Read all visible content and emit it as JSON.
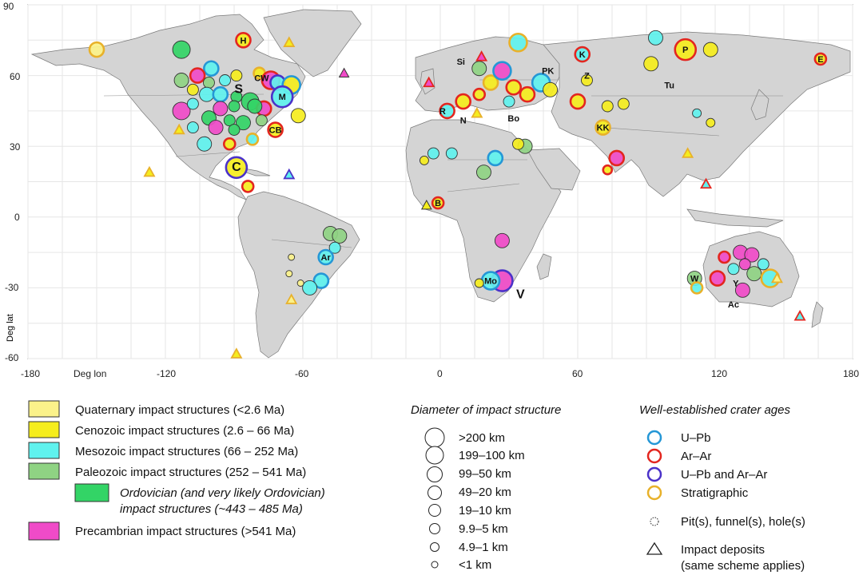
{
  "axes": {
    "y_ticks": [
      "90",
      "60",
      "30",
      "0",
      "-30",
      "-60"
    ],
    "x_ticks": [
      "-180",
      "-120",
      "-60",
      "0",
      "60",
      "120",
      "180"
    ],
    "x_label": "Deg lon",
    "y_label": "Deg lat"
  },
  "colors": {
    "quaternary": "#fbf28a",
    "cenozoic": "#f5ed1d",
    "mesozoic": "#5ff2ee",
    "paleozoic": "#8fd383",
    "ordovician": "#33d466",
    "precambrian": "#f04bc8",
    "upb": "#2597d6",
    "arar": "#e3261f",
    "both": "#4b32c9",
    "strat": "#e8b12a",
    "land": "#d4d4d4",
    "ocean": "#ffffff"
  },
  "legend_age": [
    {
      "label": "Quaternary impact structures (<2.6 Ma)",
      "color": "quaternary"
    },
    {
      "label": "Cenozoic impact structures (2.6 – 66 Ma)",
      "color": "cenozoic"
    },
    {
      "label": "Mesozoic impact structures (66 – 252 Ma)",
      "color": "mesozoic"
    },
    {
      "label": "Paleozoic impact structures (252 – 541 Ma)",
      "color": "paleozoic"
    },
    {
      "label": "Ordovician (and very likely Ordovician)",
      "label2": "impact structures (~443 – 485 Ma)",
      "color": "ordovician"
    },
    {
      "label": "Precambrian impact structures (>541 Ma)",
      "color": "precambrian"
    }
  ],
  "legend_diameter": {
    "title": "Diameter of impact structure",
    "items": [
      ">200 km",
      "199–100 km",
      "99–50 km",
      "49–20 km",
      "19–10 km",
      "9.9–5 km",
      "4.9–1 km",
      "<1 km"
    ]
  },
  "legend_ages": {
    "title": "Well-established crater ages",
    "items": [
      {
        "label": "U–Pb",
        "color": "upb"
      },
      {
        "label": "Ar–Ar",
        "color": "arar"
      },
      {
        "label": "U–Pb and Ar–Ar",
        "color": "both"
      },
      {
        "label": "Stratigraphic",
        "color": "strat"
      }
    ],
    "pit_label": "Pit(s), funnel(s), hole(s)",
    "deposit_label": "Impact deposits",
    "deposit_label2": "(same scheme applies)"
  },
  "site_labels": [
    {
      "text": "H",
      "lon": -86,
      "lat": 75
    },
    {
      "text": "CW",
      "lon": -78,
      "lat": 59
    },
    {
      "text": "S",
      "lon": -88,
      "lat": 54
    },
    {
      "text": "M",
      "lon": -69,
      "lat": 51
    },
    {
      "text": "CB",
      "lon": -72,
      "lat": 37
    },
    {
      "text": "C",
      "lon": -89,
      "lat": 21
    },
    {
      "text": "Ar",
      "lon": -50,
      "lat": -17
    },
    {
      "text": "R",
      "lon": 1,
      "lat": 45
    },
    {
      "text": "N",
      "lon": 10,
      "lat": 41
    },
    {
      "text": "Bo",
      "lon": 32,
      "lat": 42
    },
    {
      "text": "Si",
      "lon": 9,
      "lat": 66
    },
    {
      "text": "PK",
      "lon": 47,
      "lat": 62
    },
    {
      "text": "Z",
      "lon": 64,
      "lat": 60
    },
    {
      "text": "K",
      "lon": 62,
      "lat": 69
    },
    {
      "text": "P",
      "lon": 107,
      "lat": 71
    },
    {
      "text": "E",
      "lon": 166,
      "lat": 67
    },
    {
      "text": "Tu",
      "lon": 100,
      "lat": 56
    },
    {
      "text": "KK",
      "lon": 71,
      "lat": 38
    },
    {
      "text": "B",
      "lon": -1,
      "lat": 6
    },
    {
      "text": "Mo",
      "lon": 22,
      "lat": -27
    },
    {
      "text": "V",
      "lon": 35,
      "lat": -33
    },
    {
      "text": "W",
      "lon": 111,
      "lat": -26
    },
    {
      "text": "Y",
      "lon": 129,
      "lat": -28
    },
    {
      "text": "Ac",
      "lon": 128,
      "lat": -37
    }
  ],
  "craters": [
    {
      "lon": -150,
      "lat": 71,
      "d": 4,
      "f": "quaternary",
      "r": "strat"
    },
    {
      "lon": -113,
      "lat": 71,
      "d": 5,
      "f": "ordovician"
    },
    {
      "lon": -86,
      "lat": 75,
      "d": 4,
      "f": "cenozoic",
      "r": "arar"
    },
    {
      "lon": -100,
      "lat": 63,
      "d": 4,
      "f": "mesozoic",
      "r": "upb"
    },
    {
      "lon": -113,
      "lat": 58,
      "d": 4,
      "f": "paleozoic"
    },
    {
      "lon": -106,
      "lat": 60,
      "d": 4,
      "f": "precambrian",
      "r": "arar"
    },
    {
      "lon": -101,
      "lat": 57,
      "d": 3,
      "f": "paleozoic"
    },
    {
      "lon": -94,
      "lat": 58,
      "d": 3,
      "f": "mesozoic"
    },
    {
      "lon": -89,
      "lat": 60,
      "d": 3,
      "f": "cenozoic"
    },
    {
      "lon": -79,
      "lat": 61,
      "d": 3,
      "f": "cenozoic",
      "r": "strat"
    },
    {
      "lon": -74,
      "lat": 58,
      "d": 5,
      "f": "precambrian",
      "r": "arar"
    },
    {
      "lon": -71,
      "lat": 57,
      "d": 4,
      "f": "mesozoic",
      "r": "both"
    },
    {
      "lon": -65,
      "lat": 56,
      "d": 5,
      "f": "cenozoic",
      "r": "upb"
    },
    {
      "lon": -108,
      "lat": 54,
      "d": 3,
      "f": "cenozoic"
    },
    {
      "lon": -102,
      "lat": 52,
      "d": 4,
      "f": "mesozoic"
    },
    {
      "lon": -96,
      "lat": 52,
      "d": 4,
      "f": "mesozoic",
      "r": "upb"
    },
    {
      "lon": -89,
      "lat": 51,
      "d": 3,
      "f": "ordovician"
    },
    {
      "lon": -83,
      "lat": 49,
      "d": 5,
      "f": "ordovician"
    },
    {
      "lon": -69,
      "lat": 51,
      "d": 6,
      "f": "mesozoic",
      "r": "both"
    },
    {
      "lon": -77,
      "lat": 46,
      "d": 4,
      "f": "precambrian",
      "r": "arar"
    },
    {
      "lon": -81,
      "lat": 47,
      "d": 4,
      "f": "ordovician"
    },
    {
      "lon": -90,
      "lat": 47,
      "d": 3,
      "f": "ordovician"
    },
    {
      "lon": -96,
      "lat": 46,
      "d": 4,
      "f": "precambrian"
    },
    {
      "lon": -113,
      "lat": 45,
      "d": 5,
      "f": "precambrian"
    },
    {
      "lon": -108,
      "lat": 48,
      "d": 3,
      "f": "mesozoic"
    },
    {
      "lon": -101,
      "lat": 42,
      "d": 4,
      "f": "ordovician"
    },
    {
      "lon": -92,
      "lat": 41,
      "d": 3,
      "f": "ordovician"
    },
    {
      "lon": -86,
      "lat": 40,
      "d": 4,
      "f": "ordovician"
    },
    {
      "lon": -78,
      "lat": 41,
      "d": 3,
      "f": "paleozoic"
    },
    {
      "lon": -62,
      "lat": 43,
      "d": 4,
      "f": "cenozoic"
    },
    {
      "lon": -108,
      "lat": 38,
      "d": 3,
      "f": "mesozoic"
    },
    {
      "lon": -98,
      "lat": 38,
      "d": 4,
      "f": "precambrian"
    },
    {
      "lon": -90,
      "lat": 37,
      "d": 3,
      "f": "ordovician"
    },
    {
      "lon": -72,
      "lat": 37,
      "d": 4,
      "f": "cenozoic",
      "r": "arar"
    },
    {
      "lon": -103,
      "lat": 31,
      "d": 4,
      "f": "mesozoic"
    },
    {
      "lon": -92,
      "lat": 31,
      "d": 3,
      "f": "cenozoic",
      "r": "arar"
    },
    {
      "lon": -82,
      "lat": 33,
      "d": 3,
      "f": "mesozoic",
      "r": "strat"
    },
    {
      "lon": -89,
      "lat": 21,
      "d": 6,
      "f": "cenozoic",
      "r": "both"
    },
    {
      "lon": -84,
      "lat": 13,
      "d": 3,
      "f": "cenozoic",
      "r": "arar"
    },
    {
      "lon": -48,
      "lat": -7,
      "d": 4,
      "f": "paleozoic"
    },
    {
      "lon": -44,
      "lat": -8,
      "d": 4,
      "f": "paleozoic"
    },
    {
      "lon": -46,
      "lat": -13,
      "d": 3,
      "f": "mesozoic"
    },
    {
      "lon": -50,
      "lat": -17,
      "d": 4,
      "f": "mesozoic",
      "r": "upb"
    },
    {
      "lon": -52,
      "lat": -27,
      "d": 4,
      "f": "mesozoic",
      "r": "upb"
    },
    {
      "lon": -57,
      "lat": -30,
      "d": 4,
      "f": "mesozoic"
    },
    {
      "lon": -65,
      "lat": -17,
      "d": 1,
      "f": "quaternary"
    },
    {
      "lon": -66,
      "lat": -24,
      "d": 1,
      "f": "quaternary"
    },
    {
      "lon": -61,
      "lat": -28,
      "d": 1,
      "f": "quaternary"
    },
    {
      "lon": 3,
      "lat": 45,
      "d": 4,
      "f": "mesozoic",
      "r": "arar"
    },
    {
      "lon": 10,
      "lat": 49,
      "d": 4,
      "f": "cenozoic",
      "r": "arar"
    },
    {
      "lon": 17,
      "lat": 52,
      "d": 3,
      "f": "cenozoic",
      "r": "arar"
    },
    {
      "lon": 22,
      "lat": 57,
      "d": 4,
      "f": "cenozoic",
      "r": "strat"
    },
    {
      "lon": 27,
      "lat": 62,
      "d": 5,
      "f": "precambrian",
      "r": "upb"
    },
    {
      "lon": 17,
      "lat": 63,
      "d": 4,
      "f": "paleozoic"
    },
    {
      "lon": 34,
      "lat": 74,
      "d": 5,
      "f": "mesozoic",
      "r": "strat"
    },
    {
      "lon": 32,
      "lat": 55,
      "d": 4,
      "f": "cenozoic",
      "r": "arar"
    },
    {
      "lon": 38,
      "lat": 52,
      "d": 4,
      "f": "cenozoic",
      "r": "arar"
    },
    {
      "lon": 30,
      "lat": 49,
      "d": 3,
      "f": "mesozoic"
    },
    {
      "lon": 44,
      "lat": 57,
      "d": 5,
      "f": "mesozoic",
      "r": "upb"
    },
    {
      "lon": 48,
      "lat": 54,
      "d": 4,
      "f": "cenozoic"
    },
    {
      "lon": 62,
      "lat": 69,
      "d": 4,
      "f": "mesozoic",
      "r": "arar"
    },
    {
      "lon": 64,
      "lat": 58,
      "d": 3,
      "f": "cenozoic"
    },
    {
      "lon": 60,
      "lat": 49,
      "d": 4,
      "f": "cenozoic",
      "r": "arar"
    },
    {
      "lon": 94,
      "lat": 76,
      "d": 4,
      "f": "mesozoic"
    },
    {
      "lon": 92,
      "lat": 65,
      "d": 4,
      "f": "cenozoic"
    },
    {
      "lon": 107,
      "lat": 71,
      "d": 6,
      "f": "cenozoic",
      "r": "arar"
    },
    {
      "lon": 118,
      "lat": 71,
      "d": 4,
      "f": "cenozoic"
    },
    {
      "lon": 166,
      "lat": 67,
      "d": 3,
      "f": "cenozoic",
      "r": "arar"
    },
    {
      "lon": 71,
      "lat": 38,
      "d": 4,
      "f": "cenozoic",
      "r": "strat"
    },
    {
      "lon": 80,
      "lat": 48,
      "d": 3,
      "f": "cenozoic"
    },
    {
      "lon": 73,
      "lat": 47,
      "d": 3,
      "f": "cenozoic"
    },
    {
      "lon": 77,
      "lat": 25,
      "d": 4,
      "f": "precambrian",
      "r": "arar"
    },
    {
      "lon": 73,
      "lat": 20,
      "d": 2,
      "f": "cenozoic",
      "r": "arar"
    },
    {
      "lon": 118,
      "lat": 40,
      "d": 2,
      "f": "cenozoic"
    },
    {
      "lon": 112,
      "lat": 44,
      "d": 2,
      "f": "mesozoic"
    },
    {
      "lon": -3,
      "lat": 27,
      "d": 3,
      "f": "mesozoic"
    },
    {
      "lon": -7,
      "lat": 24,
      "d": 2,
      "f": "cenozoic"
    },
    {
      "lon": 5,
      "lat": 27,
      "d": 3,
      "f": "mesozoic"
    },
    {
      "lon": 24,
      "lat": 25,
      "d": 4,
      "f": "mesozoic",
      "r": "upb"
    },
    {
      "lon": 19,
      "lat": 19,
      "d": 4,
      "f": "paleozoic"
    },
    {
      "lon": 37,
      "lat": 30,
      "d": 4,
      "f": "paleozoic"
    },
    {
      "lon": 34,
      "lat": 31,
      "d": 3,
      "f": "cenozoic"
    },
    {
      "lon": -1,
      "lat": 6,
      "d": 3,
      "f": "cenozoic",
      "r": "arar"
    },
    {
      "lon": 27,
      "lat": -10,
      "d": 4,
      "f": "precambrian"
    },
    {
      "lon": 27,
      "lat": -27,
      "d": 6,
      "f": "precambrian",
      "r": "both"
    },
    {
      "lon": 22,
      "lat": -27,
      "d": 5,
      "f": "mesozoic",
      "r": "upb"
    },
    {
      "lon": 17,
      "lat": -28,
      "d": 2,
      "f": "cenozoic"
    },
    {
      "lon": 124,
      "lat": -17,
      "d": 3,
      "f": "precambrian",
      "r": "arar"
    },
    {
      "lon": 131,
      "lat": -15,
      "d": 4,
      "f": "precambrian"
    },
    {
      "lon": 136,
      "lat": -16,
      "d": 4,
      "f": "precambrian"
    },
    {
      "lon": 133,
      "lat": -20,
      "d": 3,
      "f": "precambrian"
    },
    {
      "lon": 128,
      "lat": -22,
      "d": 3,
      "f": "mesozoic"
    },
    {
      "lon": 137,
      "lat": -24,
      "d": 4,
      "f": "paleozoic"
    },
    {
      "lon": 144,
      "lat": -26,
      "d": 5,
      "f": "mesozoic",
      "r": "strat"
    },
    {
      "lon": 121,
      "lat": -26,
      "d": 4,
      "f": "precambrian",
      "r": "arar"
    },
    {
      "lon": 111,
      "lat": -26,
      "d": 4,
      "f": "paleozoic"
    },
    {
      "lon": 112,
      "lat": -30,
      "d": 3,
      "f": "mesozoic",
      "r": "strat"
    },
    {
      "lon": 132,
      "lat": -31,
      "d": 4,
      "f": "precambrian"
    },
    {
      "lon": 141,
      "lat": -20,
      "d": 3,
      "f": "mesozoic"
    }
  ],
  "deposits": [
    {
      "lon": -127,
      "lat": 19,
      "f": "cenozoic",
      "r": "strat"
    },
    {
      "lon": -66,
      "lat": 18,
      "f": "mesozoic",
      "r": "both"
    },
    {
      "lon": -65,
      "lat": -35,
      "f": "quaternary",
      "r": "strat"
    },
    {
      "lon": -89,
      "lat": -58,
      "f": "cenozoic",
      "r": "strat"
    },
    {
      "lon": -66,
      "lat": 74,
      "f": "cenozoic",
      "r": "strat"
    },
    {
      "lon": -42,
      "lat": 61,
      "f": "precambrian"
    },
    {
      "lon": -114,
      "lat": 37,
      "f": "cenozoic",
      "r": "strat"
    },
    {
      "lon": -5,
      "lat": 57,
      "f": "precambrian",
      "r": "arar"
    },
    {
      "lon": 18,
      "lat": 68,
      "f": "precambrian",
      "r": "arar"
    },
    {
      "lon": 16,
      "lat": 44,
      "f": "cenozoic",
      "r": "strat"
    },
    {
      "lon": -6,
      "lat": 5,
      "f": "cenozoic"
    },
    {
      "lon": 108,
      "lat": 27,
      "f": "cenozoic",
      "r": "strat"
    },
    {
      "lon": 116,
      "lat": 14,
      "f": "mesozoic",
      "r": "arar"
    },
    {
      "lon": 147,
      "lat": -26,
      "f": "quaternary",
      "r": "strat"
    },
    {
      "lon": 157,
      "lat": -42,
      "f": "mesozoic",
      "r": "arar"
    }
  ]
}
